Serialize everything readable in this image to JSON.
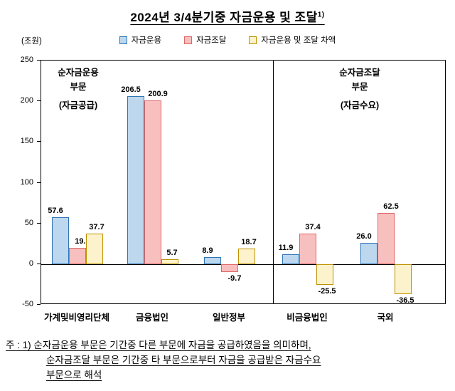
{
  "title": {
    "text": "2024년 3/4분기중 자금운용 및 조달",
    "superscript": "1)"
  },
  "unit_label": "(조원)",
  "chart_data": {
    "type": "bar",
    "title": "2024년 3/4분기중 자금운용 및 조달",
    "categories": [
      "가계및비영리단체",
      "금융법인",
      "일반정부",
      "비금융법인",
      "국외"
    ],
    "series": [
      {
        "name": "자금운용",
        "fill": "#BDD7EE",
        "border": "#2E75B6",
        "values": [
          57.6,
          206.5,
          8.9,
          11.9,
          26.0
        ]
      },
      {
        "name": "자금조달",
        "fill": "#F8BFBF",
        "border": "#E06666",
        "values": [
          19.9,
          200.9,
          -9.7,
          37.4,
          62.5
        ]
      },
      {
        "name": "자금운용 및 조달 차액",
        "fill": "#FCF2CB",
        "border": "#BF9000",
        "values": [
          37.7,
          5.7,
          18.7,
          -25.5,
          -36.5
        ]
      }
    ],
    "xlabel": "",
    "ylabel": "(조원)",
    "ylim": [
      -50,
      250
    ],
    "yticks": [
      250,
      200,
      150,
      100,
      50,
      0,
      -50
    ],
    "grid": false,
    "legend_position": "top",
    "section_split_after": "일반정부",
    "section_labels": [
      {
        "side": "left",
        "lines": [
          "순자금운용",
          "부문",
          "(자금공급)"
        ]
      },
      {
        "side": "right",
        "lines": [
          "순자금조달",
          "부문",
          "(자금수요)"
        ]
      }
    ]
  },
  "footnote": {
    "lines": [
      {
        "text": "주 : 1) 순자금운용 부문은 기간중 다른 부문에 자금을 공급하였음을 의미하며,",
        "indent": false
      },
      {
        "text": "순자금조달 부문은 기간중 타 부문으로부터 자금을 공급받은 자금수요",
        "indent": true
      },
      {
        "text": "부문으로 해석",
        "indent": true
      }
    ]
  }
}
